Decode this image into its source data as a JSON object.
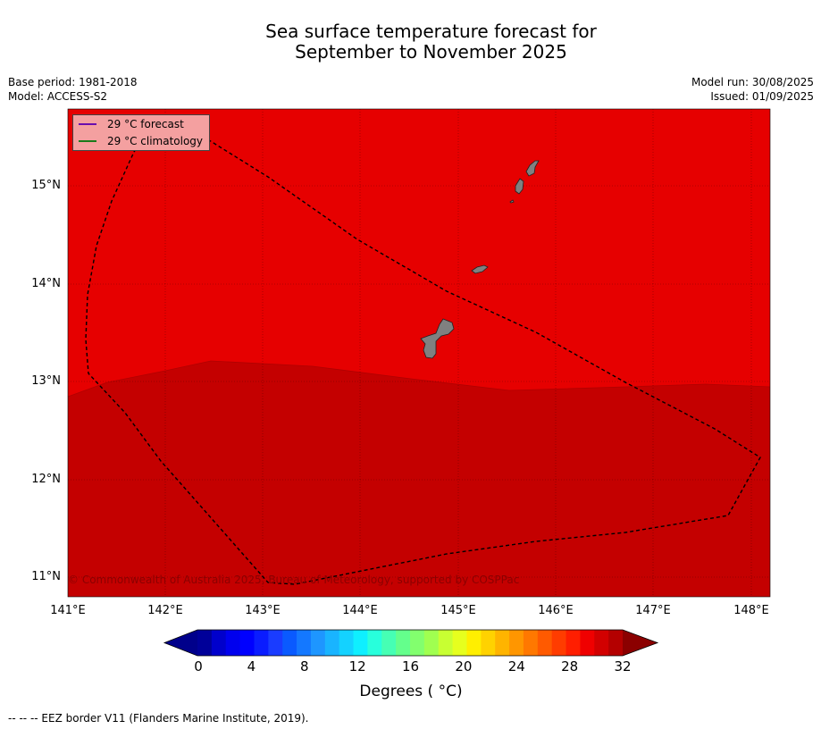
{
  "title_line1": "Sea surface temperature forecast for",
  "title_line2": "September to November 2025",
  "meta": {
    "base_period": "Base period: 1981-2018",
    "model": "Model: ACCESS-S2",
    "model_run": "Model run: 30/08/2025",
    "issued": "Issued: 01/09/2025"
  },
  "legend": {
    "forecast_label": "29 °C  forecast",
    "forecast_color": "#6a0dad",
    "climatology_label": "29 °C  climatology",
    "climatology_color": "#1a7a1a"
  },
  "map": {
    "lon_range": [
      141.0,
      148.2
    ],
    "lat_range": [
      10.8,
      15.8
    ],
    "lat_ticks": [
      "15°N",
      "14°N",
      "13°N",
      "12°N",
      "11°N"
    ],
    "lon_ticks": [
      "141°E",
      "142°E",
      "143°E",
      "144°E",
      "145°E",
      "146°E",
      "147°E",
      "148°E"
    ],
    "colors": {
      "warm_zone": "#e60000",
      "warmer_zone": "#c40000",
      "land": "#808080"
    },
    "copyright": "© Commonwealth of Australia 2025, Bureau of Meteorology, supported by COSPPac"
  },
  "colorbar": {
    "ticks": [
      "0",
      "4",
      "8",
      "12",
      "16",
      "20",
      "24",
      "28",
      "32"
    ],
    "label": "Degrees ( °C)",
    "colors": [
      "#000099",
      "#0000cc",
      "#0000ee",
      "#0000ff",
      "#0a1cff",
      "#1a3cff",
      "#0a5aff",
      "#1478ff",
      "#1e96ff",
      "#19b4ff",
      "#14d2ff",
      "#0fefff",
      "#28ffdc",
      "#46ffb4",
      "#64ff8c",
      "#82ff6e",
      "#a0ff50",
      "#c8ff32",
      "#e6ff1e",
      "#ffef00",
      "#ffd200",
      "#ffb400",
      "#ff9600",
      "#ff7800",
      "#ff5a00",
      "#ff3c00",
      "#ff1e00",
      "#f00000",
      "#d20000",
      "#b40000"
    ],
    "under_color": "#00008b",
    "over_color": "#8b0000"
  },
  "footnote": "--  --  -- EEZ border V11 (Flanders Marine Institute, 2019)."
}
